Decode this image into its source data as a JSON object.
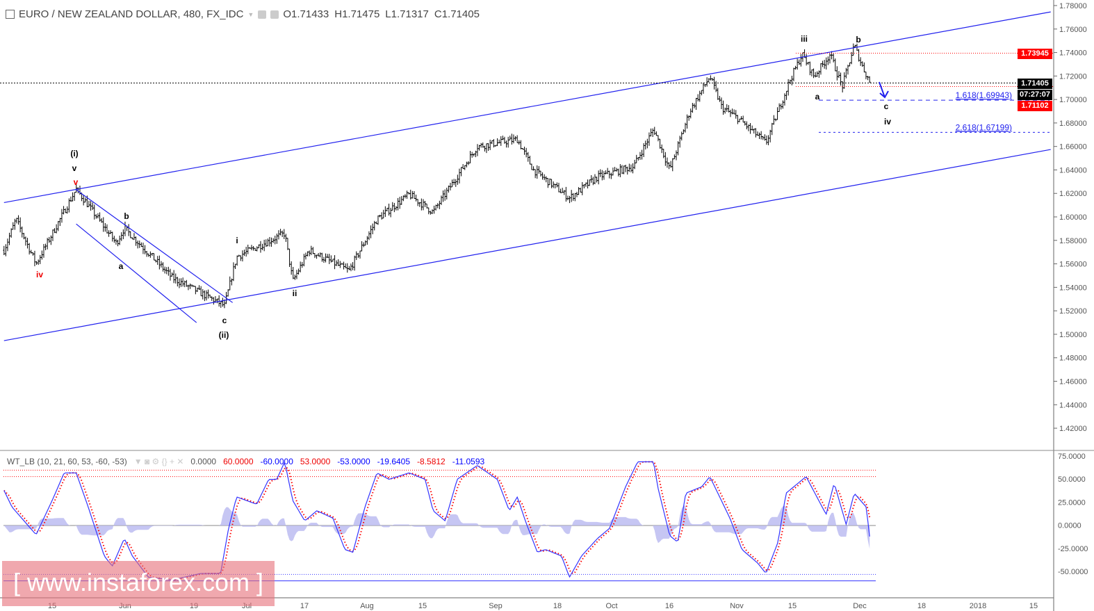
{
  "header": {
    "symbol": "EURO / NEW ZEALAND DOLLAR, 480, FX_IDC",
    "open": "O1.71433",
    "high": "H1.71475",
    "low": "L1.71317",
    "close": "C1.71405"
  },
  "indicator": {
    "name": "WT_LB (10, 21, 60, 53, -60, -53)",
    "values": [
      "0.0000",
      "60.0000",
      "-60.0000",
      "53.0000",
      "-53.0000",
      "-19.6405",
      "-8.5812",
      "-11.0593"
    ],
    "colors": [
      "#555",
      "#e00",
      "#00f",
      "#e00",
      "#00f",
      "#00f",
      "#e00",
      "#00f"
    ]
  },
  "watermark": "[ www.instaforex.com ]",
  "price_tags": {
    "resistance": "1.73945",
    "last": "1.71405",
    "countdown": "07:27:07",
    "support": "1.71102"
  },
  "fib_labels": [
    "1.618(1.69943)",
    "2.618(1.67199)"
  ],
  "colors": {
    "channel": "#2020ee",
    "bar": "#000000",
    "red": "#ff0000",
    "wt1": "#3333ff",
    "wt2": "#ff0000",
    "hist": "#b8b8f0"
  },
  "chart_data": {
    "type": "ohlc",
    "price_axis": [
      "1.78000",
      "1.76000",
      "1.74000",
      "1.72000",
      "1.70000",
      "1.68000",
      "1.66000",
      "1.64000",
      "1.62000",
      "1.60000",
      "1.58000",
      "1.56000",
      "1.54000",
      "1.52000",
      "1.50000",
      "1.48000",
      "1.46000",
      "1.44000",
      "1.42000"
    ],
    "ylim": [
      1.42,
      1.78
    ],
    "time_axis": [
      "15",
      "Jun",
      "19",
      "Jul",
      "17",
      "Aug",
      "15",
      "Sep",
      "18",
      "Oct",
      "16",
      "Nov",
      "15",
      "Dec",
      "18",
      "2018",
      "15"
    ],
    "price_path": [
      [
        "2017-05-03",
        1.5716
      ],
      [
        "2017-05-06",
        1.598
      ],
      [
        "2017-05-11",
        1.56
      ],
      [
        "2017-05-21",
        1.6237
      ],
      [
        "2017-05-31",
        1.5775
      ],
      [
        "2017-06-02",
        1.5905
      ],
      [
        "2017-06-14",
        1.548
      ],
      [
        "2017-06-27",
        1.5243
      ],
      [
        "2017-06-30",
        1.566
      ],
      [
        "2017-07-12",
        1.586
      ],
      [
        "2017-07-14",
        1.545
      ],
      [
        "2017-07-18",
        1.5716
      ],
      [
        "2017-07-28",
        1.554
      ],
      [
        "2017-08-04",
        1.598
      ],
      [
        "2017-08-12",
        1.619
      ],
      [
        "2017-08-18",
        1.604
      ],
      [
        "2017-08-29",
        1.66
      ],
      [
        "2017-09-08",
        1.666
      ],
      [
        "2017-09-12",
        1.64
      ],
      [
        "2017-09-21",
        1.616
      ],
      [
        "2017-09-28",
        1.634
      ],
      [
        "2017-10-07",
        1.643
      ],
      [
        "2017-10-12",
        1.675
      ],
      [
        "2017-10-16",
        1.64
      ],
      [
        "2017-10-21",
        1.69
      ],
      [
        "2017-10-26",
        1.7196
      ],
      [
        "2017-10-29",
        1.693
      ],
      [
        "2017-11-02",
        1.684
      ],
      [
        "2017-11-09",
        1.663
      ],
      [
        "2017-11-15",
        1.7166
      ],
      [
        "2017-11-18",
        1.7386
      ],
      [
        "2017-11-21",
        1.7196
      ],
      [
        "2017-11-25",
        1.7386
      ],
      [
        "2017-11-28",
        1.7107
      ],
      [
        "2017-12-01",
        1.7462
      ],
      [
        "2017-12-03",
        1.7285
      ],
      [
        "2017-12-05",
        1.71405
      ]
    ],
    "levels": [
      {
        "price": 1.73945,
        "color": "#ff0000"
      },
      {
        "price": 1.71405,
        "color": "#000000"
      },
      {
        "price": 1.71102,
        "color": "#ff0000"
      },
      {
        "price": 1.69943,
        "color": "#2020ee"
      },
      {
        "price": 1.67199,
        "color": "#2020ee"
      }
    ],
    "trendlines": [
      {
        "from": [
          "2017-05-03",
          1.6122
        ],
        "to": [
          "2018-01-19",
          1.7746
        ]
      },
      {
        "from": [
          "2017-05-03",
          1.4946
        ],
        "to": [
          "2018-01-19",
          1.6574
        ]
      },
      {
        "from": [
          "2017-05-21",
          1.6231
        ],
        "to": [
          "2017-06-29",
          1.527
        ]
      },
      {
        "from": [
          "2017-05-21",
          1.594
        ],
        "to": [
          "2017-06-20",
          1.51
        ]
      }
    ],
    "wave_labels": [
      {
        "t": "(i)",
        "c": "#000"
      },
      {
        "t": "v",
        "c": "#000"
      },
      {
        "t": "v",
        "c": "#e00"
      },
      {
        "t": "iv",
        "c": "#e00"
      },
      {
        "t": "a",
        "c": "#000"
      },
      {
        "t": "b",
        "c": "#000"
      },
      {
        "t": "c",
        "c": "#000"
      },
      {
        "t": "(ii)",
        "c": "#000"
      },
      {
        "t": "i",
        "c": "#000"
      },
      {
        "t": "ii",
        "c": "#000"
      },
      {
        "t": "iii",
        "c": "#000"
      },
      {
        "t": "b",
        "c": "#000"
      },
      {
        "t": "a",
        "c": "#000"
      },
      {
        "t": "c",
        "c": "#000"
      },
      {
        "t": "iv",
        "c": "#000"
      }
    ],
    "indicator_axis": [
      "75.0000",
      "50.0000",
      "25.0000",
      "0.0000",
      "-25.0000",
      "-50.0000"
    ],
    "indicator_levels": [
      60,
      53,
      -53,
      -60,
      0
    ],
    "wt1": [
      [
        "2017-05-03",
        38
      ],
      [
        "2017-05-05",
        20
      ],
      [
        "2017-05-11",
        -10
      ],
      [
        "2017-05-15",
        27
      ],
      [
        "2017-05-18",
        57
      ],
      [
        "2017-05-21",
        57
      ],
      [
        "2017-05-24",
        20
      ],
      [
        "2017-05-28",
        -33
      ],
      [
        "2017-05-30",
        -44
      ],
      [
        "2017-06-02",
        -14
      ],
      [
        "2017-06-04",
        -33
      ],
      [
        "2017-06-08",
        -56
      ],
      [
        "2017-06-14",
        -59
      ],
      [
        "2017-06-21",
        -52
      ],
      [
        "2017-06-26",
        -52
      ],
      [
        "2017-06-28",
        -3
      ],
      [
        "2017-06-30",
        31
      ],
      [
        "2017-07-05",
        23
      ],
      [
        "2017-07-08",
        50
      ],
      [
        "2017-07-10",
        50
      ],
      [
        "2017-07-12",
        69
      ],
      [
        "2017-07-14",
        27
      ],
      [
        "2017-07-17",
        5
      ],
      [
        "2017-07-20",
        16
      ],
      [
        "2017-07-24",
        8
      ],
      [
        "2017-07-27",
        -26
      ],
      [
        "2017-07-29",
        -29
      ],
      [
        "2017-08-01",
        20
      ],
      [
        "2017-08-04",
        57
      ],
      [
        "2017-08-07",
        50
      ],
      [
        "2017-08-12",
        57
      ],
      [
        "2017-08-16",
        50
      ],
      [
        "2017-08-18",
        16
      ],
      [
        "2017-08-21",
        5
      ],
      [
        "2017-08-24",
        50
      ],
      [
        "2017-08-29",
        65
      ],
      [
        "2017-09-03",
        50
      ],
      [
        "2017-09-06",
        16
      ],
      [
        "2017-09-08",
        31
      ],
      [
        "2017-09-10",
        5
      ],
      [
        "2017-09-13",
        -29
      ],
      [
        "2017-09-15",
        -26
      ],
      [
        "2017-09-19",
        -33
      ],
      [
        "2017-09-21",
        -56
      ],
      [
        "2017-09-24",
        -33
      ],
      [
        "2017-09-28",
        -14
      ],
      [
        "2017-10-01",
        -3
      ],
      [
        "2017-10-05",
        42
      ],
      [
        "2017-10-08",
        69
      ],
      [
        "2017-10-12",
        69
      ],
      [
        "2017-10-13",
        42
      ],
      [
        "2017-10-16",
        -11
      ],
      [
        "2017-10-18",
        -18
      ],
      [
        "2017-10-20",
        35
      ],
      [
        "2017-10-24",
        42
      ],
      [
        "2017-10-26",
        53
      ],
      [
        "2017-10-31",
        8
      ],
      [
        "2017-11-03",
        -26
      ],
      [
        "2017-11-07",
        -41
      ],
      [
        "2017-11-09",
        -52
      ],
      [
        "2017-11-12",
        -18
      ],
      [
        "2017-11-14",
        35
      ],
      [
        "2017-11-19",
        53
      ],
      [
        "2017-11-24",
        12
      ],
      [
        "2017-11-26",
        46
      ],
      [
        "2017-11-29",
        1
      ],
      [
        "2017-12-01",
        35
      ],
      [
        "2017-12-04",
        20
      ],
      [
        "2017-12-05",
        -18
      ]
    ]
  }
}
